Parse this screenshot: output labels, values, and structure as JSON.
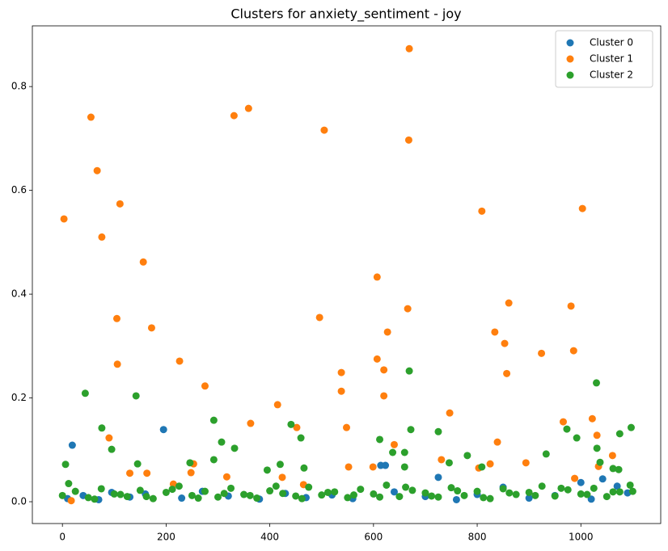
{
  "chart_data": {
    "type": "scatter",
    "title": "Clusters for anxiety_sentiment - joy",
    "xlim": [
      -58,
      1154
    ],
    "ylim": [
      -0.042,
      0.917
    ],
    "xticks": [
      0,
      200,
      400,
      600,
      800,
      1000
    ],
    "yticks": [
      {
        "value": 0,
        "label": "0.0"
      },
      0.2,
      0.4,
      0.6,
      0.8
    ],
    "grid": false,
    "legend": "upper right",
    "series": [
      {
        "name": "Cluster 0",
        "color": "#1f77b4",
        "x": [
          19,
          195,
          614,
          623,
          725,
          1042,
          1000,
          10,
          40,
          70,
          95,
          130,
          160,
          230,
          270,
          320,
          380,
          430,
          470,
          520,
          560,
          640,
          700,
          760,
          800,
          850,
          900,
          950,
          1020,
          1070,
          1090
        ],
        "y": [
          0.109,
          0.139,
          0.07,
          0.07,
          0.047,
          0.044,
          0.037,
          0.006,
          0.012,
          0.004,
          0.018,
          0.009,
          0.015,
          0.007,
          0.02,
          0.011,
          0.005,
          0.016,
          0.008,
          0.013,
          0.006,
          0.019,
          0.01,
          0.004,
          0.014,
          0.028,
          0.007,
          0.012,
          0.005,
          0.03,
          0.017
        ]
      },
      {
        "name": "Cluster 1",
        "color": "#ff7f0e",
        "x": [
          3,
          55,
          67,
          76,
          111,
          156,
          105,
          106,
          172,
          226,
          275,
          331,
          359,
          415,
          505,
          496,
          538,
          538,
          548,
          607,
          607,
          620,
          620,
          627,
          666,
          668,
          669,
          809,
          1003,
          834,
          853,
          861,
          857,
          924,
          981,
          986,
          747,
          966,
          1022,
          1031,
          839,
          363,
          90,
          640,
          452,
          17,
          214,
          253,
          248,
          163,
          130,
          317,
          424,
          552,
          599,
          731,
          825,
          803,
          894,
          988,
          1034,
          1061,
          465
        ],
        "y": [
          0.545,
          0.741,
          0.638,
          0.51,
          0.574,
          0.462,
          0.353,
          0.265,
          0.335,
          0.271,
          0.223,
          0.744,
          0.758,
          0.187,
          0.716,
          0.355,
          0.249,
          0.213,
          0.143,
          0.433,
          0.275,
          0.254,
          0.204,
          0.327,
          0.372,
          0.697,
          0.873,
          0.56,
          0.565,
          0.327,
          0.305,
          0.383,
          0.247,
          0.286,
          0.377,
          0.291,
          0.171,
          0.154,
          0.16,
          0.128,
          0.115,
          0.151,
          0.123,
          0.11,
          0.143,
          0.002,
          0.034,
          0.073,
          0.056,
          0.055,
          0.055,
          0.048,
          0.047,
          0.067,
          0.067,
          0.081,
          0.073,
          0.065,
          0.075,
          0.045,
          0.068,
          0.089,
          0.033
        ]
      },
      {
        "name": "Cluster 2",
        "color": "#2ca02c",
        "x": [
          44,
          142,
          669,
          1030,
          76,
          95,
          292,
          307,
          332,
          441,
          460,
          612,
          672,
          725,
          973,
          992,
          1031,
          1097,
          1075,
          6,
          145,
          246,
          292,
          395,
          420,
          466,
          660,
          746,
          781,
          809,
          933,
          1037,
          1062,
          1073,
          637,
          660,
          0,
          25,
          50,
          75,
          100,
          125,
          150,
          175,
          200,
          225,
          250,
          275,
          300,
          325,
          350,
          375,
          400,
          425,
          450,
          475,
          500,
          525,
          550,
          575,
          600,
          625,
          650,
          675,
          700,
          725,
          750,
          775,
          800,
          825,
          850,
          875,
          900,
          925,
          950,
          975,
          1000,
          1025,
          1050,
          1075,
          1100,
          12,
          62,
          112,
          162,
          212,
          262,
          312,
          362,
          412,
          462,
          512,
          562,
          612,
          662,
          712,
          762,
          812,
          862,
          912,
          962,
          1012,
          1062,
          1095
        ],
        "y": [
          0.209,
          0.204,
          0.252,
          0.229,
          0.142,
          0.101,
          0.157,
          0.115,
          0.103,
          0.149,
          0.123,
          0.12,
          0.139,
          0.135,
          0.14,
          0.123,
          0.103,
          0.143,
          0.131,
          0.072,
          0.073,
          0.075,
          0.081,
          0.061,
          0.072,
          0.065,
          0.067,
          0.075,
          0.089,
          0.067,
          0.092,
          0.076,
          0.064,
          0.062,
          0.095,
          0.095,
          0.012,
          0.02,
          0.008,
          0.025,
          0.015,
          0.01,
          0.022,
          0.006,
          0.018,
          0.03,
          0.012,
          0.02,
          0.009,
          0.026,
          0.014,
          0.007,
          0.021,
          0.016,
          0.011,
          0.028,
          0.013,
          0.019,
          0.008,
          0.024,
          0.015,
          0.032,
          0.01,
          0.022,
          0.017,
          0.009,
          0.027,
          0.012,
          0.02,
          0.006,
          0.025,
          0.014,
          0.018,
          0.03,
          0.011,
          0.023,
          0.015,
          0.026,
          0.01,
          0.019,
          0.02,
          0.035,
          0.005,
          0.014,
          0.01,
          0.024,
          0.007,
          0.016,
          0.012,
          0.03,
          0.006,
          0.018,
          0.013,
          0.009,
          0.028,
          0.011,
          0.021,
          0.008,
          0.017,
          0.012,
          0.026,
          0.014,
          0.019,
          0.032
        ]
      }
    ]
  }
}
